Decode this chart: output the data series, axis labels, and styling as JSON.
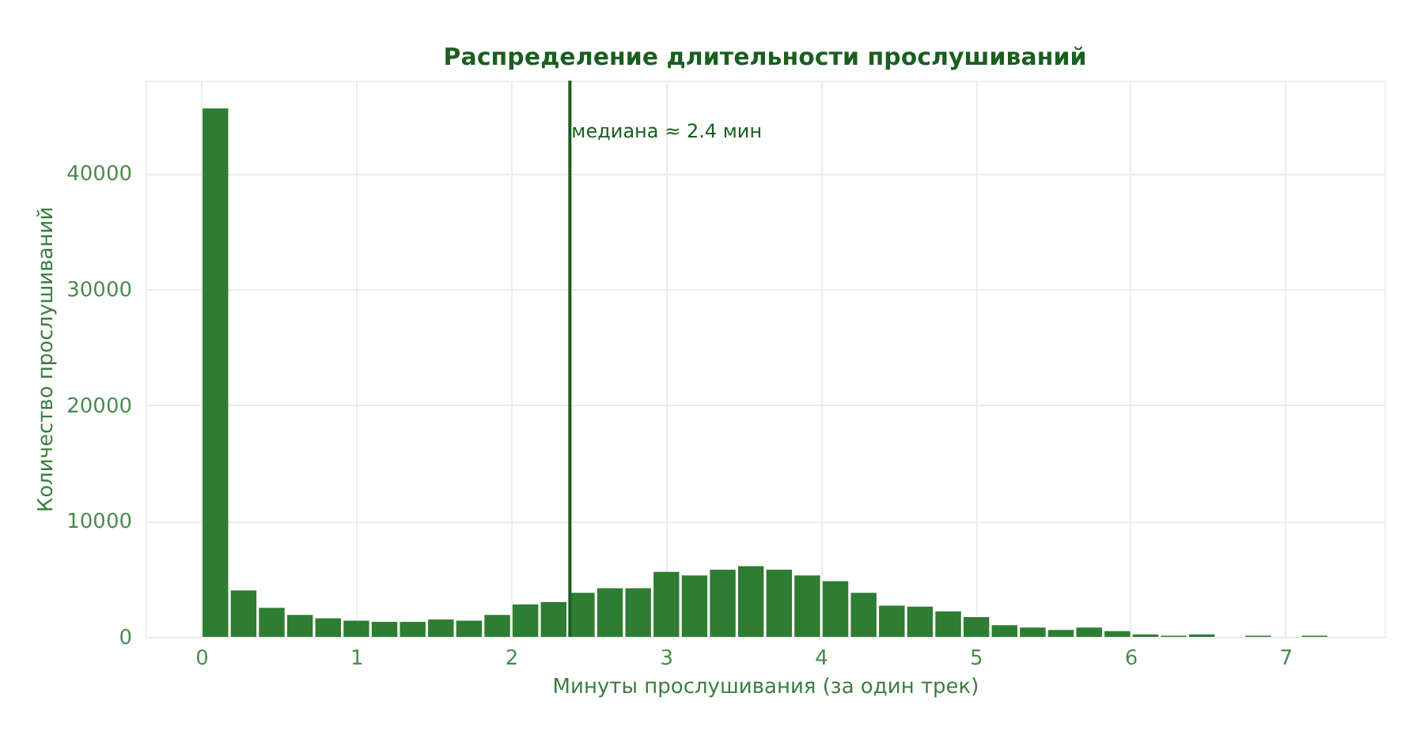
{
  "chart_data": {
    "type": "histogram",
    "title": "Распределение длительности прослушиваний",
    "xlabel": "Минуты прослушивания (за один трек)",
    "ylabel": "Количество прослушиваний",
    "bins": [
      0,
      0.182,
      0.364,
      0.546,
      0.728,
      0.91,
      1.092,
      1.274,
      1.456,
      1.638,
      1.82,
      2.002,
      2.184,
      2.366,
      2.548,
      2.73,
      2.912,
      3.094,
      3.276,
      3.458,
      3.64,
      3.822,
      4.004,
      4.186,
      4.368,
      4.55,
      4.732,
      4.914,
      5.096,
      5.278,
      5.46,
      5.642,
      5.824,
      6.006,
      6.188,
      6.37,
      6.552,
      6.734,
      6.916,
      7.098,
      7.28
    ],
    "values": [
      45600,
      4000,
      2500,
      1900,
      1600,
      1400,
      1300,
      1300,
      1500,
      1400,
      1900,
      2800,
      3000,
      3800,
      4200,
      4200,
      5600,
      5300,
      5800,
      6100,
      5800,
      5300,
      4800,
      3800,
      2700,
      2600,
      2200,
      1700,
      1000,
      800,
      600,
      800,
      500,
      200,
      100,
      200,
      0,
      100,
      0,
      100
    ],
    "color": "#2e7d32",
    "xlim": [
      -0.36,
      7.64
    ],
    "ylim": [
      0,
      48000
    ],
    "xticks": [
      0,
      1,
      2,
      3,
      4,
      5,
      6,
      7
    ],
    "yticks": [
      0,
      10000,
      20000,
      30000,
      40000
    ],
    "grid": true,
    "ref_lines": [
      {
        "axis": "x",
        "value": 2.38,
        "label": "медиана ≈ 2.4 мин",
        "color": "#1b5e20"
      }
    ]
  }
}
